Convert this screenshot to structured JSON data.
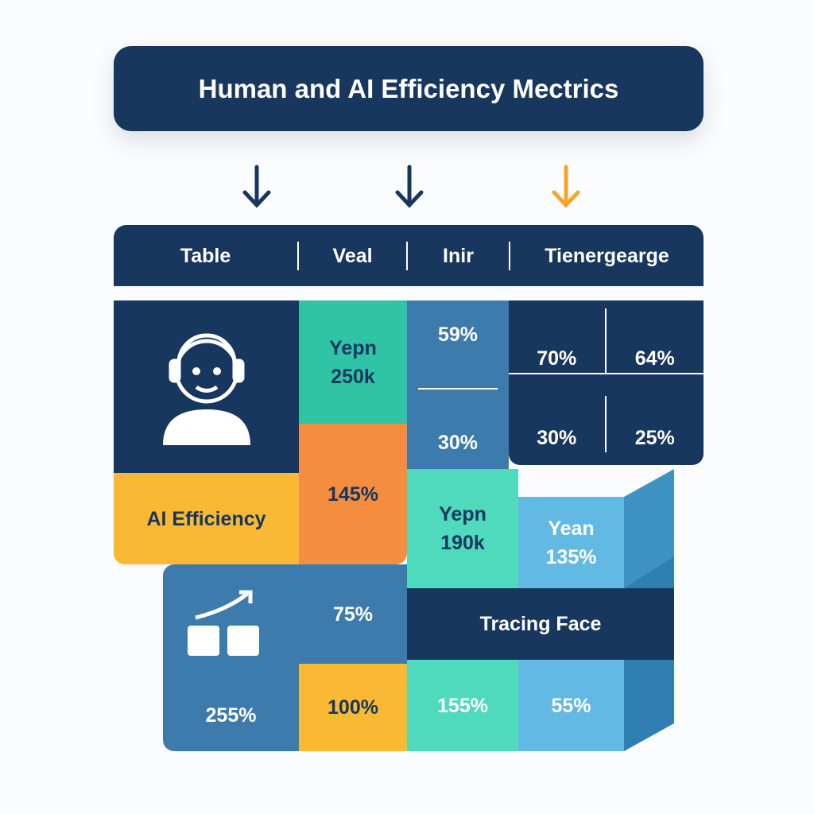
{
  "title": "Human and AI Efficiency Mectrics",
  "header": {
    "columns": [
      "Table",
      "Veal",
      "Inir",
      "Tienergearge"
    ]
  },
  "cells": {
    "teal_top": [
      "Yepn",
      "250k"
    ],
    "steel_top": [
      "59%",
      "30%"
    ],
    "grid": [
      "70%",
      "64%",
      "30%",
      "25%"
    ],
    "ai_label": "AI Efficiency",
    "orange": "145%",
    "teal_mid": [
      "Yepn",
      "190k"
    ],
    "light_mid": [
      "Yean",
      "135%"
    ],
    "bottom_left": "255%",
    "blue_mid": "75%",
    "band": "Tracing Face",
    "yellow_bottom": "100%",
    "teal_bottom": "155%",
    "light_bottom": "55%"
  }
}
